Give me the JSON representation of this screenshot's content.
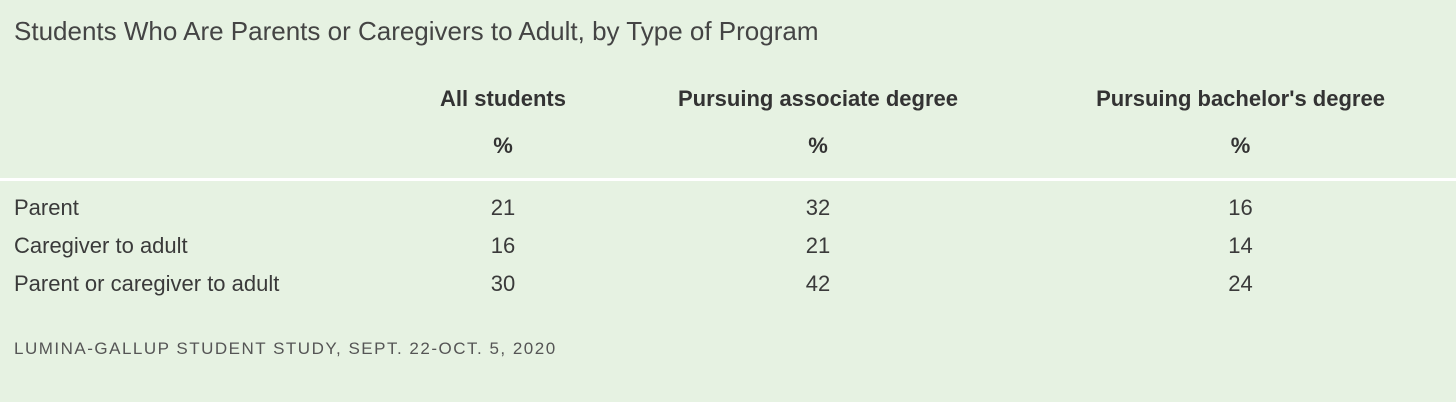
{
  "chart_data": {
    "type": "table",
    "title": "Students Who Are Parents or Caregivers to Adult, by Type of Program",
    "columns": [
      "All students",
      "Pursuing associate degree",
      "Pursuing bachelor's degree"
    ],
    "units": [
      "%",
      "%",
      "%"
    ],
    "rows": [
      {
        "label": "Parent",
        "values": [
          "21",
          "32",
          "16"
        ]
      },
      {
        "label": "Caregiver to adult",
        "values": [
          "16",
          "21",
          "14"
        ]
      },
      {
        "label": "Parent or caregiver to adult",
        "values": [
          "30",
          "42",
          "24"
        ]
      }
    ],
    "source": "LUMINA-GALLUP STUDENT STUDY, SEPT. 22-OCT. 5, 2020"
  },
  "colors": {
    "background": "#e6f2e2",
    "text": "#3a3a3a",
    "divider": "#ffffff"
  }
}
